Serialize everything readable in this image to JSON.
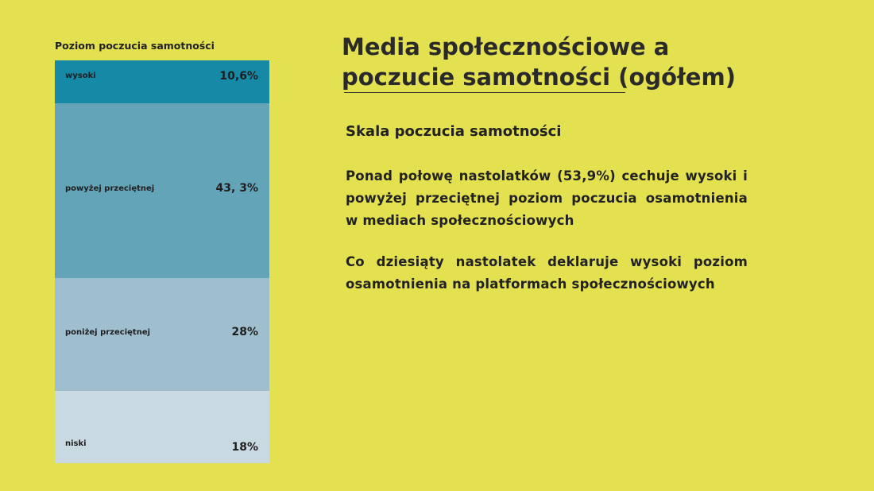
{
  "slide": {
    "title": "Media społecznościowe a poczucie samotności (ogółem)",
    "subtitle": "Skala poczucia samotności",
    "paragraphs": [
      "Ponad połowę nastolatków (53,9%) cechuje wysoki i powyżej przeciętnej poziom poczucia osamotnienia w mediach społecznościowych",
      "Co dziesiąty nastolatek deklaruje wysoki poziom osamotnienia na platformach społecznościowych"
    ]
  },
  "chart_data": {
    "type": "bar",
    "stacked": true,
    "title": "Poziom poczucia samotności",
    "categories": [
      "wysoki",
      "powyżej przeciętnej",
      "poniżej przeciętnej",
      "niski"
    ],
    "values": [
      10.6,
      43.3,
      28,
      18
    ],
    "value_labels": [
      "10,6%",
      "43, 3%",
      "28%",
      "18%"
    ],
    "colors": [
      "#1589a6",
      "#64a4b9",
      "#9fbfcf",
      "#c8d9e1"
    ]
  }
}
